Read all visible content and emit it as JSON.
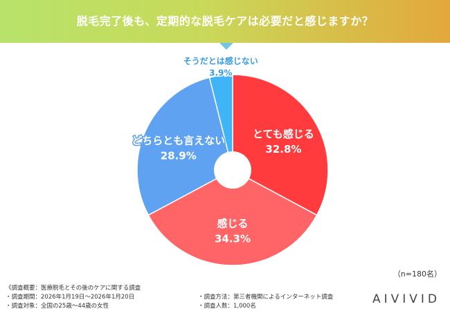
{
  "header": {
    "title": "脱毛完了後も、定期的な脱毛ケアは必要だと感じますか？"
  },
  "chart_data": {
    "type": "pie",
    "title": "",
    "slices": [
      {
        "label": "とても感じる",
        "value": 32.8,
        "value_label": "32.8%",
        "color": "#ff3b3e",
        "label_color": "#ffffff"
      },
      {
        "label": "感じる",
        "value": 34.3,
        "value_label": "34.3%",
        "color": "#ff6466",
        "label_color": "#ffffff"
      },
      {
        "label": "どちらとも言えない",
        "value": 28.9,
        "value_label": "28.9%",
        "color": "#5fa2f2",
        "label_color": "#ffffff"
      },
      {
        "label": "そうだとは感じない",
        "value": 3.9,
        "value_label": "3.9%",
        "color": "#3fb4f7",
        "label_color": "#3a9be0"
      }
    ],
    "donut_hole": true,
    "start": "top",
    "direction": "clockwise"
  },
  "sample_size": "（n=180名）",
  "footer": {
    "overview": "《調査概要：医療脱毛とその後のケアに関する調査",
    "period": "・調査期間：2026年1月19日～2026年1月20日",
    "target": "・調査対象：全国の25歳～44歳の女性",
    "method": "・調査方法：第三者機関によるインターネット調査",
    "count": "・調査人数：1,000名"
  },
  "brand": "AIVIVID"
}
